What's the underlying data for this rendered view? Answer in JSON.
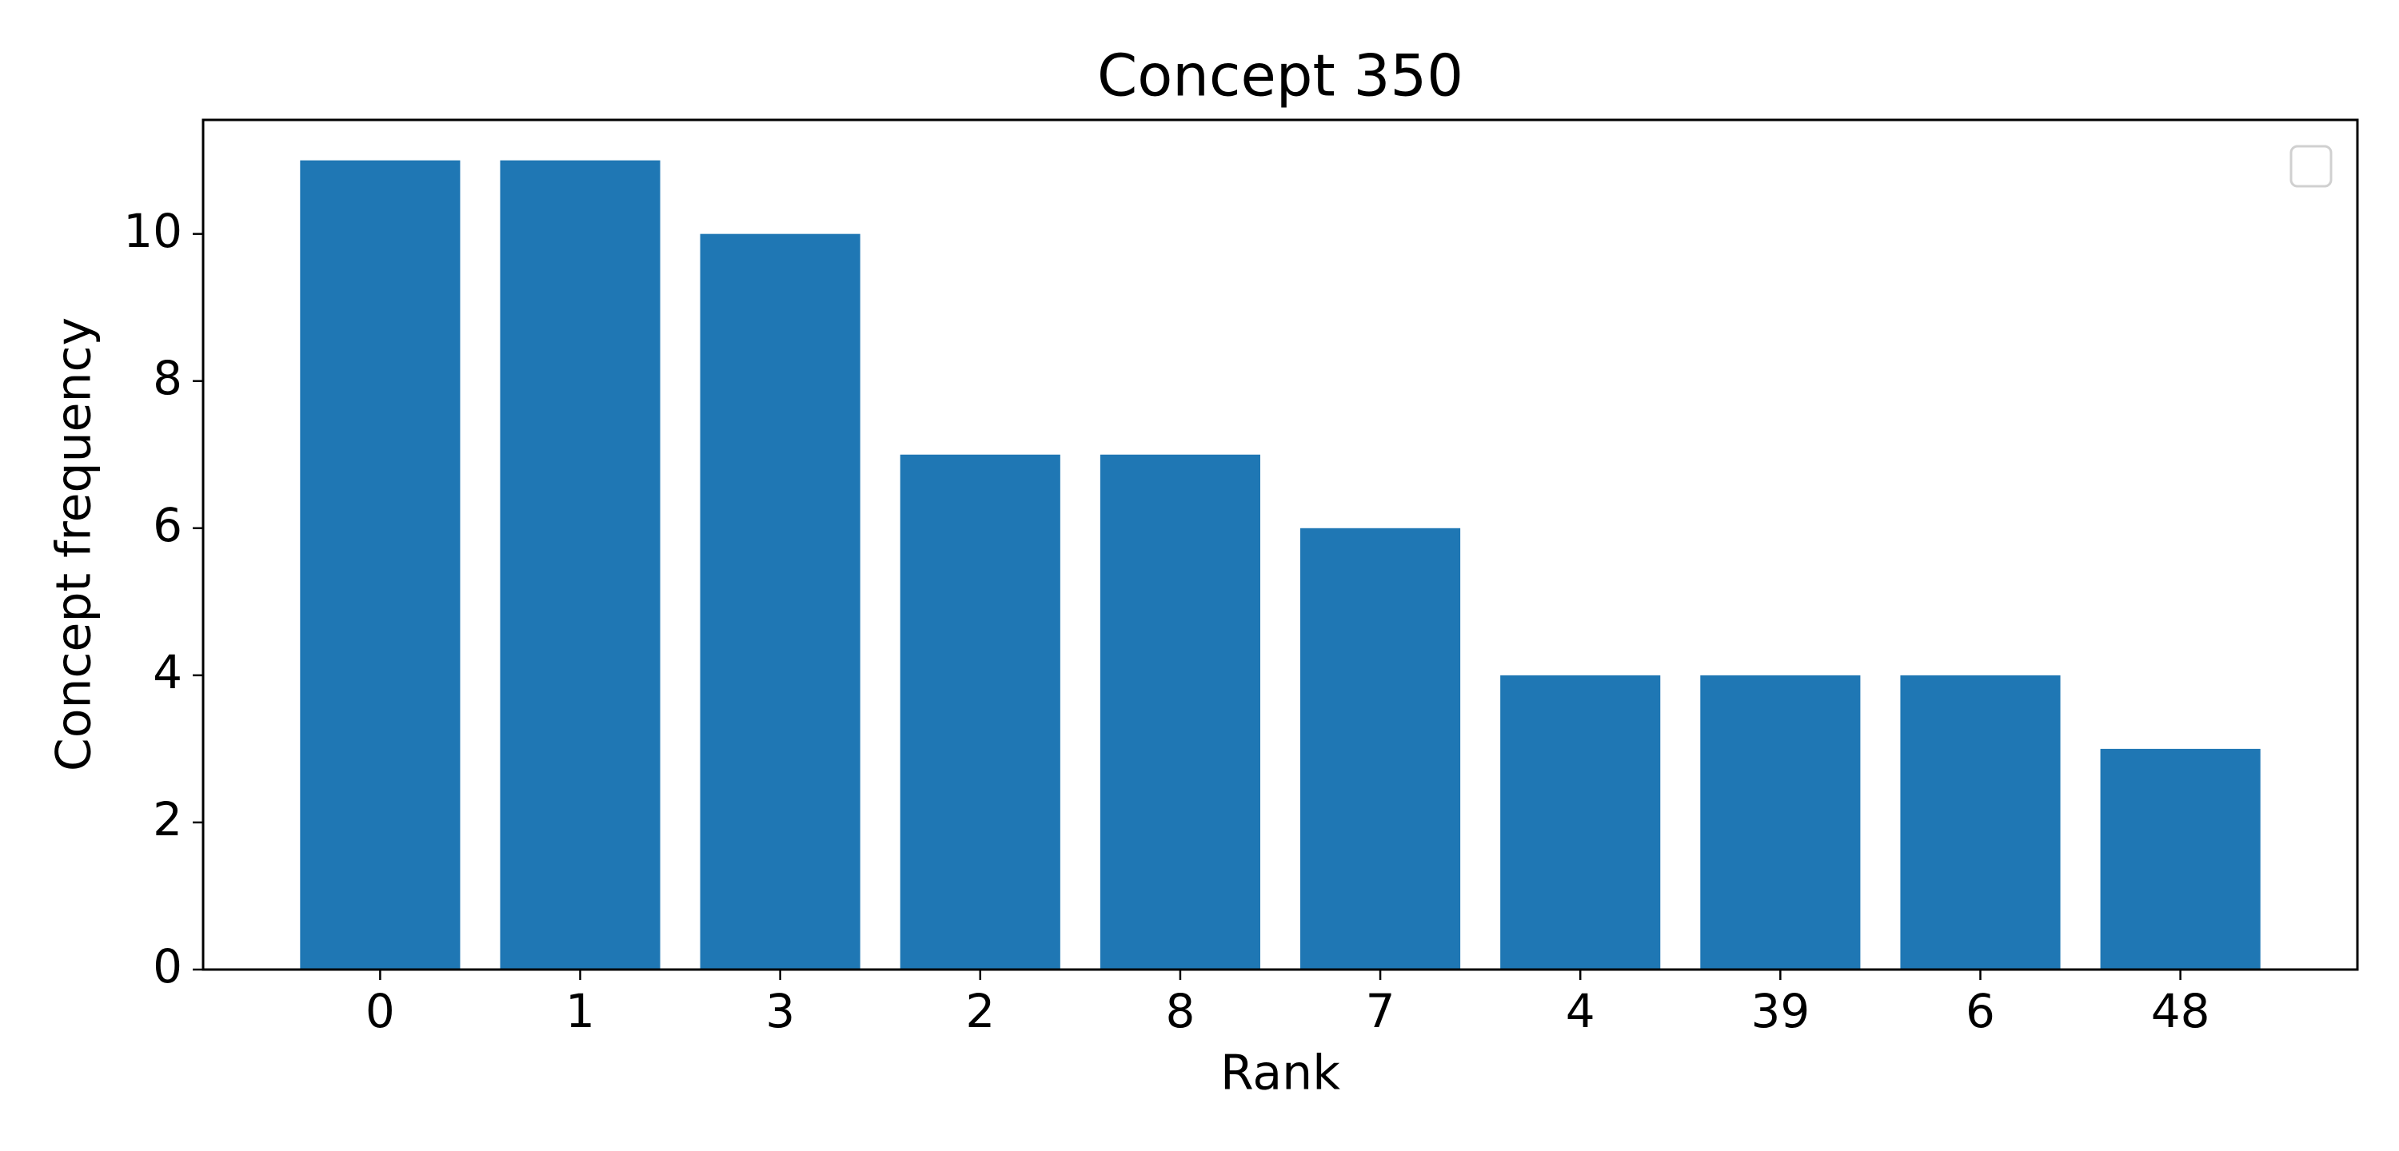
{
  "chart_data": {
    "type": "bar",
    "title": "Concept 350",
    "xlabel": "Rank",
    "ylabel": "Concept frequency",
    "categories": [
      "0",
      "1",
      "3",
      "2",
      "8",
      "7",
      "4",
      "39",
      "6",
      "48"
    ],
    "values": [
      11,
      11,
      10,
      7,
      7,
      6,
      4,
      4,
      4,
      3
    ],
    "color": "#1f77b4",
    "ylim": [
      0,
      11.55
    ],
    "yticks": [
      0,
      2,
      4,
      6,
      8,
      10
    ],
    "grid": false
  }
}
